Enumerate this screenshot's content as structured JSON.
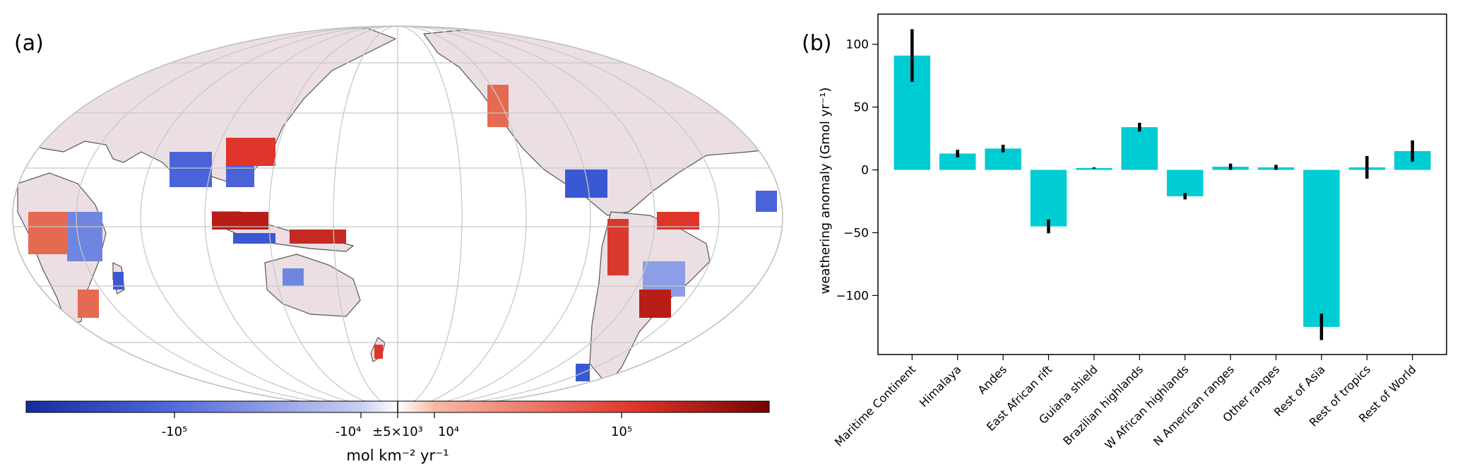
{
  "panel_a": {
    "label": "(a)",
    "colorbar": {
      "tick_labels": [
        "-10⁵",
        "-10⁴",
        "±5×10³",
        "10⁴",
        "10⁵"
      ],
      "unit": "mol km⁻² yr⁻¹",
      "colors": [
        "#152ca0",
        "#4a63d8",
        "#c9cef3",
        "#ffffff",
        "#f8b9a6",
        "#e0352a",
        "#750303"
      ]
    },
    "map_colors": {
      "land": "#ecdfe3",
      "positive": "#d93a2e",
      "negative": "#3b58d4",
      "grid": "#c8c8c8",
      "coast": "#555555"
    }
  },
  "panel_b": {
    "label": "(b)",
    "bar_color": "#00ccd4",
    "chart_data": {
      "type": "bar",
      "categories": [
        "Maritime Continent",
        "Himalaya",
        "Andes",
        "East African rift",
        "Guiana shield",
        "Brazilian highlands",
        "W African highlands",
        "N American ranges",
        "Other ranges",
        "Rest of Asia",
        "Rest of tropics",
        "Rest of World"
      ],
      "values": [
        91,
        13,
        17,
        -45,
        1.5,
        34,
        -21,
        2.5,
        2,
        -125,
        2,
        15
      ],
      "errors": [
        21,
        3,
        3,
        5.5,
        0.5,
        3.5,
        2.5,
        2.5,
        2,
        10.5,
        9,
        8.5
      ],
      "ylabel": "weathering anomaly (Gmol yr⁻¹)",
      "ylim": [
        -147,
        124
      ],
      "yticks": [
        100,
        50,
        0,
        -50,
        -100
      ],
      "ytick_labels": [
        "100",
        "50",
        "0",
        "−50",
        "−100"
      ]
    }
  }
}
